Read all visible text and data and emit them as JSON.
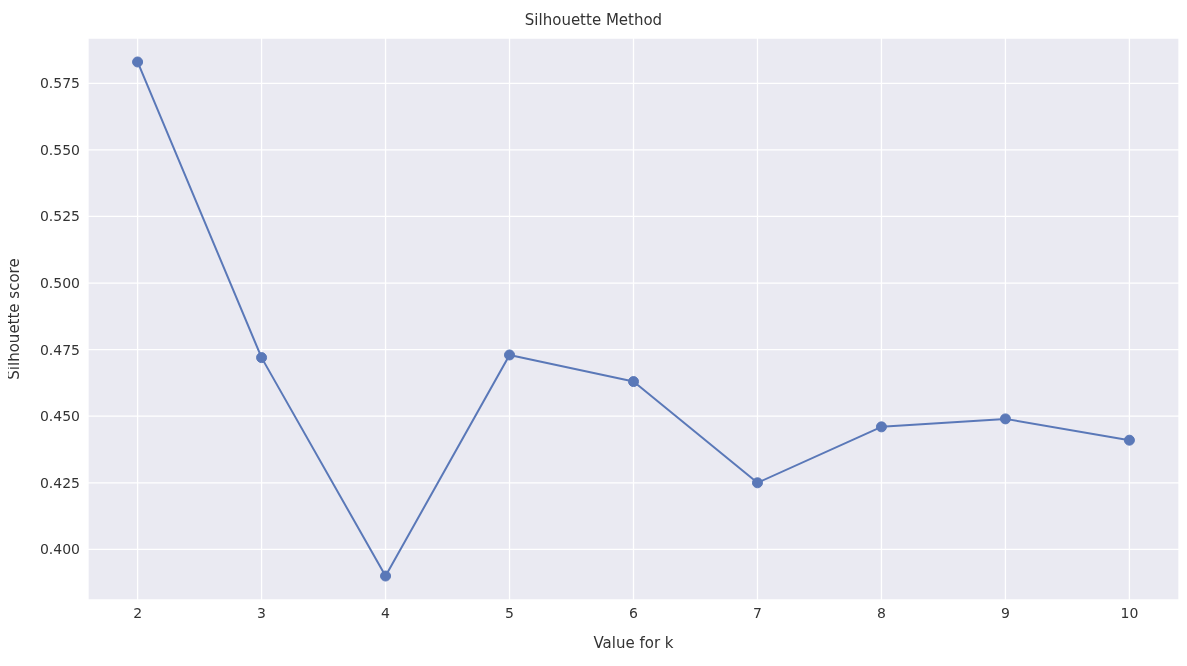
{
  "chart_data": {
    "type": "line",
    "title": "Silhouette Method",
    "xlabel": "Value for k",
    "ylabel": "Silhouette score",
    "x": [
      2,
      3,
      4,
      5,
      6,
      7,
      8,
      9,
      10
    ],
    "series": [
      {
        "color": "#5a78b8",
        "values": [
          0.583,
          0.472,
          0.39,
          0.473,
          0.463,
          0.425,
          0.446,
          0.449,
          0.441
        ]
      }
    ],
    "xlim": [
      1.6,
      10.4
    ],
    "xticks": [
      2,
      3,
      4,
      5,
      6,
      7,
      8,
      9,
      10
    ],
    "ylim": [
      0.381,
      0.592
    ],
    "yticks": [
      {
        "value": 0.4,
        "label": "0.400"
      },
      0.425,
      {
        "value": 0.45,
        "label": "0.450"
      },
      0.475,
      {
        "value": 0.5,
        "label": "0.500"
      },
      0.525,
      {
        "value": 0.55,
        "label": "0.550"
      },
      0.575
    ],
    "grid": true,
    "marker": "circle",
    "line_style": "solid"
  }
}
